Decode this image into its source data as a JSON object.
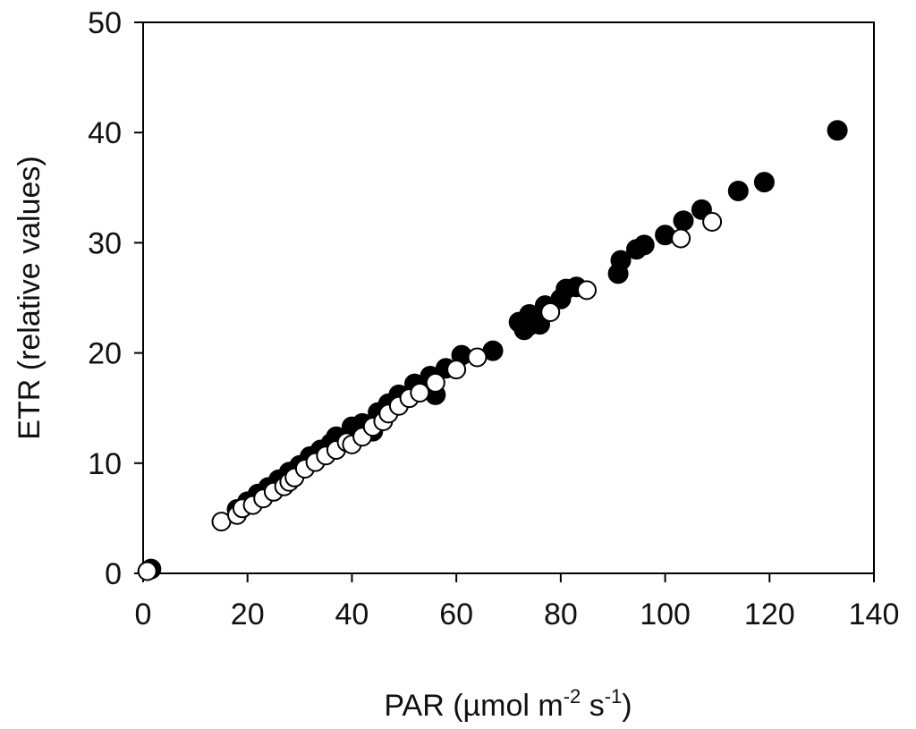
{
  "chart_data": {
    "type": "scatter",
    "title": "",
    "xlabel": {
      "base": "PAR (µmol m",
      "sup1": "-2",
      "mid": " s",
      "sup2": "-1",
      "end": ")"
    },
    "ylabel": "ETR (relative values)",
    "xlim": [
      0,
      140
    ],
    "ylim": [
      0,
      50
    ],
    "xticks": [
      0,
      20,
      40,
      60,
      80,
      100,
      120,
      140
    ],
    "yticks": [
      0,
      10,
      20,
      30,
      40,
      50
    ],
    "grid": false,
    "legend": "none",
    "series": [
      {
        "marker": "filled-circle",
        "color": "#000000",
        "points": [
          [
            1.5,
            0.4
          ],
          [
            18,
            5.8
          ],
          [
            20,
            6.5
          ],
          [
            22,
            7.2
          ],
          [
            24,
            7.8
          ],
          [
            26,
            8.5
          ],
          [
            28,
            9.2
          ],
          [
            30,
            9.8
          ],
          [
            32,
            10.6
          ],
          [
            34,
            11.2
          ],
          [
            36,
            11.8
          ],
          [
            37,
            12.4
          ],
          [
            40,
            13.3
          ],
          [
            42,
            13.6
          ],
          [
            44,
            12.9
          ],
          [
            45,
            14.6
          ],
          [
            47,
            15.4
          ],
          [
            49,
            16.2
          ],
          [
            52,
            17.2
          ],
          [
            55,
            17.9
          ],
          [
            56,
            16.2
          ],
          [
            58,
            18.6
          ],
          [
            61,
            19.8
          ],
          [
            67,
            20.2
          ],
          [
            72,
            22.8
          ],
          [
            73,
            22.1
          ],
          [
            74,
            22.5
          ],
          [
            74,
            23.5
          ],
          [
            76,
            22.6
          ],
          [
            77,
            24.3
          ],
          [
            80,
            24.9
          ],
          [
            81,
            25.8
          ],
          [
            83,
            26.0
          ],
          [
            91,
            27.2
          ],
          [
            91.5,
            28.4
          ],
          [
            94.5,
            29.4
          ],
          [
            96,
            29.8
          ],
          [
            100,
            30.7
          ],
          [
            103.5,
            32.0
          ],
          [
            107,
            33.0
          ],
          [
            114,
            34.7
          ],
          [
            119,
            35.5
          ],
          [
            133,
            40.2
          ]
        ]
      },
      {
        "marker": "open-circle",
        "color": "#ffffff",
        "points": [
          [
            0.8,
            0.2
          ],
          [
            15,
            4.7
          ],
          [
            18,
            5.3
          ],
          [
            19,
            5.9
          ],
          [
            21,
            6.2
          ],
          [
            23,
            6.8
          ],
          [
            25,
            7.4
          ],
          [
            27,
            7.9
          ],
          [
            28,
            8.3
          ],
          [
            29,
            8.7
          ],
          [
            31,
            9.5
          ],
          [
            33,
            10.1
          ],
          [
            35,
            10.7
          ],
          [
            37,
            11.2
          ],
          [
            39,
            11.9
          ],
          [
            40,
            11.7
          ],
          [
            42,
            12.4
          ],
          [
            44,
            13.3
          ],
          [
            46,
            13.8
          ],
          [
            47,
            14.5
          ],
          [
            49,
            15.2
          ],
          [
            51,
            15.9
          ],
          [
            53,
            16.4
          ],
          [
            56,
            17.3
          ],
          [
            60,
            18.5
          ],
          [
            64,
            19.6
          ],
          [
            78,
            23.7
          ],
          [
            85,
            25.7
          ],
          [
            103,
            30.4
          ],
          [
            109,
            31.9
          ]
        ]
      }
    ]
  }
}
